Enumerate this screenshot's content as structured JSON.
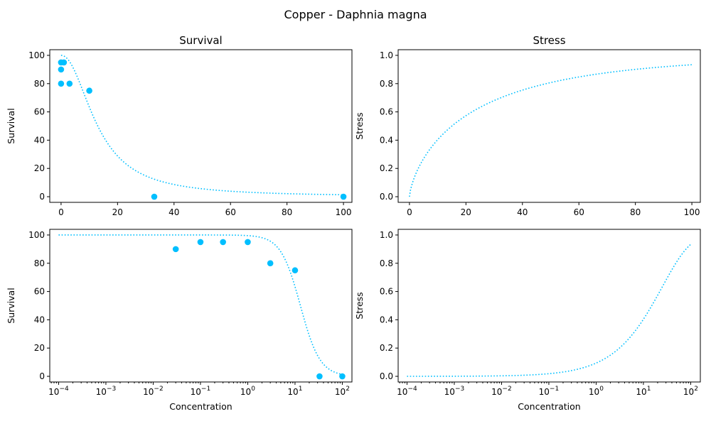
{
  "figure": {
    "title": "Copper - Daphnia magna"
  },
  "colors": {
    "series": "#00bfff"
  },
  "chart_data": [
    {
      "id": "survival-linear",
      "type": "scatter",
      "title": "Survival",
      "xlabel": "",
      "ylabel": "Survival",
      "xscale": "linear",
      "xlim": [
        -4,
        103
      ],
      "ylim": [
        -4,
        104
      ],
      "xticks": [
        0,
        20,
        40,
        60,
        80,
        100
      ],
      "yticks": [
        0,
        20,
        40,
        60,
        80,
        100
      ],
      "points": [
        [
          0,
          80
        ],
        [
          0,
          90
        ],
        [
          0,
          95
        ],
        [
          1,
          95
        ],
        [
          3,
          80
        ],
        [
          10,
          75
        ],
        [
          33,
          0
        ],
        [
          100,
          0
        ]
      ],
      "curve": {
        "style": "dotted",
        "model": "survival",
        "x_from": 0,
        "x_to": 100
      }
    },
    {
      "id": "stress-linear",
      "type": "line",
      "title": "Stress",
      "xlabel": "",
      "ylabel": "Stress",
      "xscale": "linear",
      "xlim": [
        -4,
        103
      ],
      "ylim": [
        -0.04,
        1.04
      ],
      "xticks": [
        0,
        20,
        40,
        60,
        80,
        100
      ],
      "yticks": [
        0.0,
        0.2,
        0.4,
        0.6,
        0.8,
        1.0
      ],
      "points": [],
      "curve": {
        "style": "dotted",
        "model": "stress",
        "x_from": 0,
        "x_to": 100
      }
    },
    {
      "id": "survival-log",
      "type": "scatter",
      "title": "",
      "xlabel": "Concentration",
      "ylabel": "Survival",
      "xscale": "log",
      "xlim": [
        6.5e-05,
        160
      ],
      "ylim": [
        -4,
        104
      ],
      "xticks": [
        0.0001,
        0.001,
        0.01,
        0.1,
        1,
        10,
        100
      ],
      "yticks": [
        0,
        20,
        40,
        60,
        80,
        100
      ],
      "points": [
        [
          0.03,
          90
        ],
        [
          0.1,
          95
        ],
        [
          0.3,
          95
        ],
        [
          1,
          95
        ],
        [
          3,
          80
        ],
        [
          10,
          75
        ],
        [
          33,
          0
        ],
        [
          100,
          0
        ]
      ],
      "curve": {
        "style": "dotted",
        "model": "survival",
        "x_from": 0.0001,
        "x_to": 100
      }
    },
    {
      "id": "stress-log",
      "type": "line",
      "title": "",
      "xlabel": "Concentration",
      "ylabel": "Stress",
      "xscale": "log",
      "xlim": [
        6.5e-05,
        160
      ],
      "ylim": [
        -0.04,
        1.04
      ],
      "xticks": [
        0.0001,
        0.001,
        0.01,
        0.1,
        1,
        10,
        100
      ],
      "yticks": [
        0.0,
        0.2,
        0.4,
        0.6,
        0.8,
        1.0
      ],
      "points": [],
      "curve": {
        "style": "dotted",
        "model": "stress",
        "x_from": 0.0001,
        "x_to": 100
      }
    }
  ]
}
